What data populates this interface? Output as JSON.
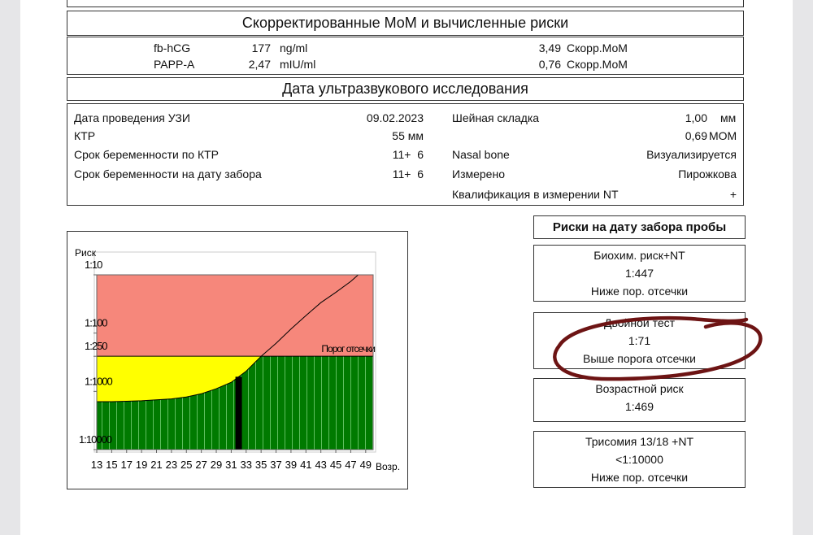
{
  "mom": {
    "title": "Скорректированные МоМ и вычисленные риски",
    "rows": [
      {
        "marker": "fb-hCG",
        "value": "177",
        "unit": "ng/ml",
        "mom": "3,49",
        "mom_label": "Скорр.МоМ"
      },
      {
        "marker": "PAPP-A",
        "value": "2,47",
        "unit": "mIU/ml",
        "mom": "0,76",
        "mom_label": "Скорр.МоМ"
      }
    ]
  },
  "ultrasound": {
    "title": "Дата ультразвукового исследования",
    "left": [
      {
        "label": "Дата проведения УЗИ",
        "value": "09.02.2023"
      },
      {
        "label": "КТР",
        "value": "55 мм"
      },
      {
        "label": "Срок беременности по КТР",
        "value": "11+  6"
      },
      {
        "label": "Срок беременности на дату забора",
        "value": "11+  6"
      }
    ],
    "right": [
      {
        "label": "Шейная складка",
        "value": "1,00",
        "unit": "мм"
      },
      {
        "value": "0,69",
        "unit": "МОМ"
      },
      {
        "label": "Nasal bone",
        "value": "Визуализируется"
      },
      {
        "label": "Измерено",
        "value": "Пирожкова"
      },
      {
        "label": "Квалификация в измерении NT",
        "value": "+"
      }
    ]
  },
  "risks": {
    "title": "Риски на дату забора пробы",
    "boxes": [
      {
        "name": "Биохим. риск+NT",
        "value": "1:447",
        "verdict": "Ниже пор. отсечки"
      },
      {
        "name": "Двойной тест",
        "value": "1:71",
        "verdict": "Выше порога отсечки"
      },
      {
        "name": "Возрастной риск",
        "value": "1:469"
      },
      {
        "name": "Трисомия 13/18 +NT",
        "value": "<1:10000",
        "verdict": "Ниже пор. отсечки"
      }
    ]
  },
  "chart_data": {
    "type": "area",
    "y_label": "Риск",
    "x_label": "Возр.",
    "threshold_label": "Порог отсечки",
    "threshold": 250,
    "log_scale": true,
    "patient_age": 32,
    "x": [
      13,
      15,
      17,
      19,
      21,
      23,
      25,
      27,
      29,
      31,
      33,
      35,
      37,
      39,
      41,
      43,
      45,
      47,
      48
    ],
    "values": [
      1500,
      1500,
      1480,
      1450,
      1400,
      1350,
      1250,
      1100,
      900,
      700,
      450,
      250,
      150,
      85,
      50,
      30,
      20,
      13,
      10
    ],
    "xlim": [
      13,
      50
    ],
    "ylim": [
      10,
      10000
    ],
    "xticks": [
      13,
      15,
      17,
      19,
      21,
      23,
      25,
      27,
      29,
      31,
      33,
      35,
      37,
      39,
      41,
      43,
      45,
      47,
      49
    ],
    "yticks": [
      {
        "value": 10,
        "label": "1:10"
      },
      {
        "value": 100,
        "label": "1:100"
      },
      {
        "value": 250,
        "label": "1:250"
      },
      {
        "value": 1000,
        "label": "1:1000"
      },
      {
        "value": 10000,
        "label": "1:10000"
      }
    ],
    "colors": {
      "high": "#f6877b",
      "mid": "#ffff00",
      "low": "#007a00",
      "line": "#000000",
      "patient": "#000000"
    }
  }
}
